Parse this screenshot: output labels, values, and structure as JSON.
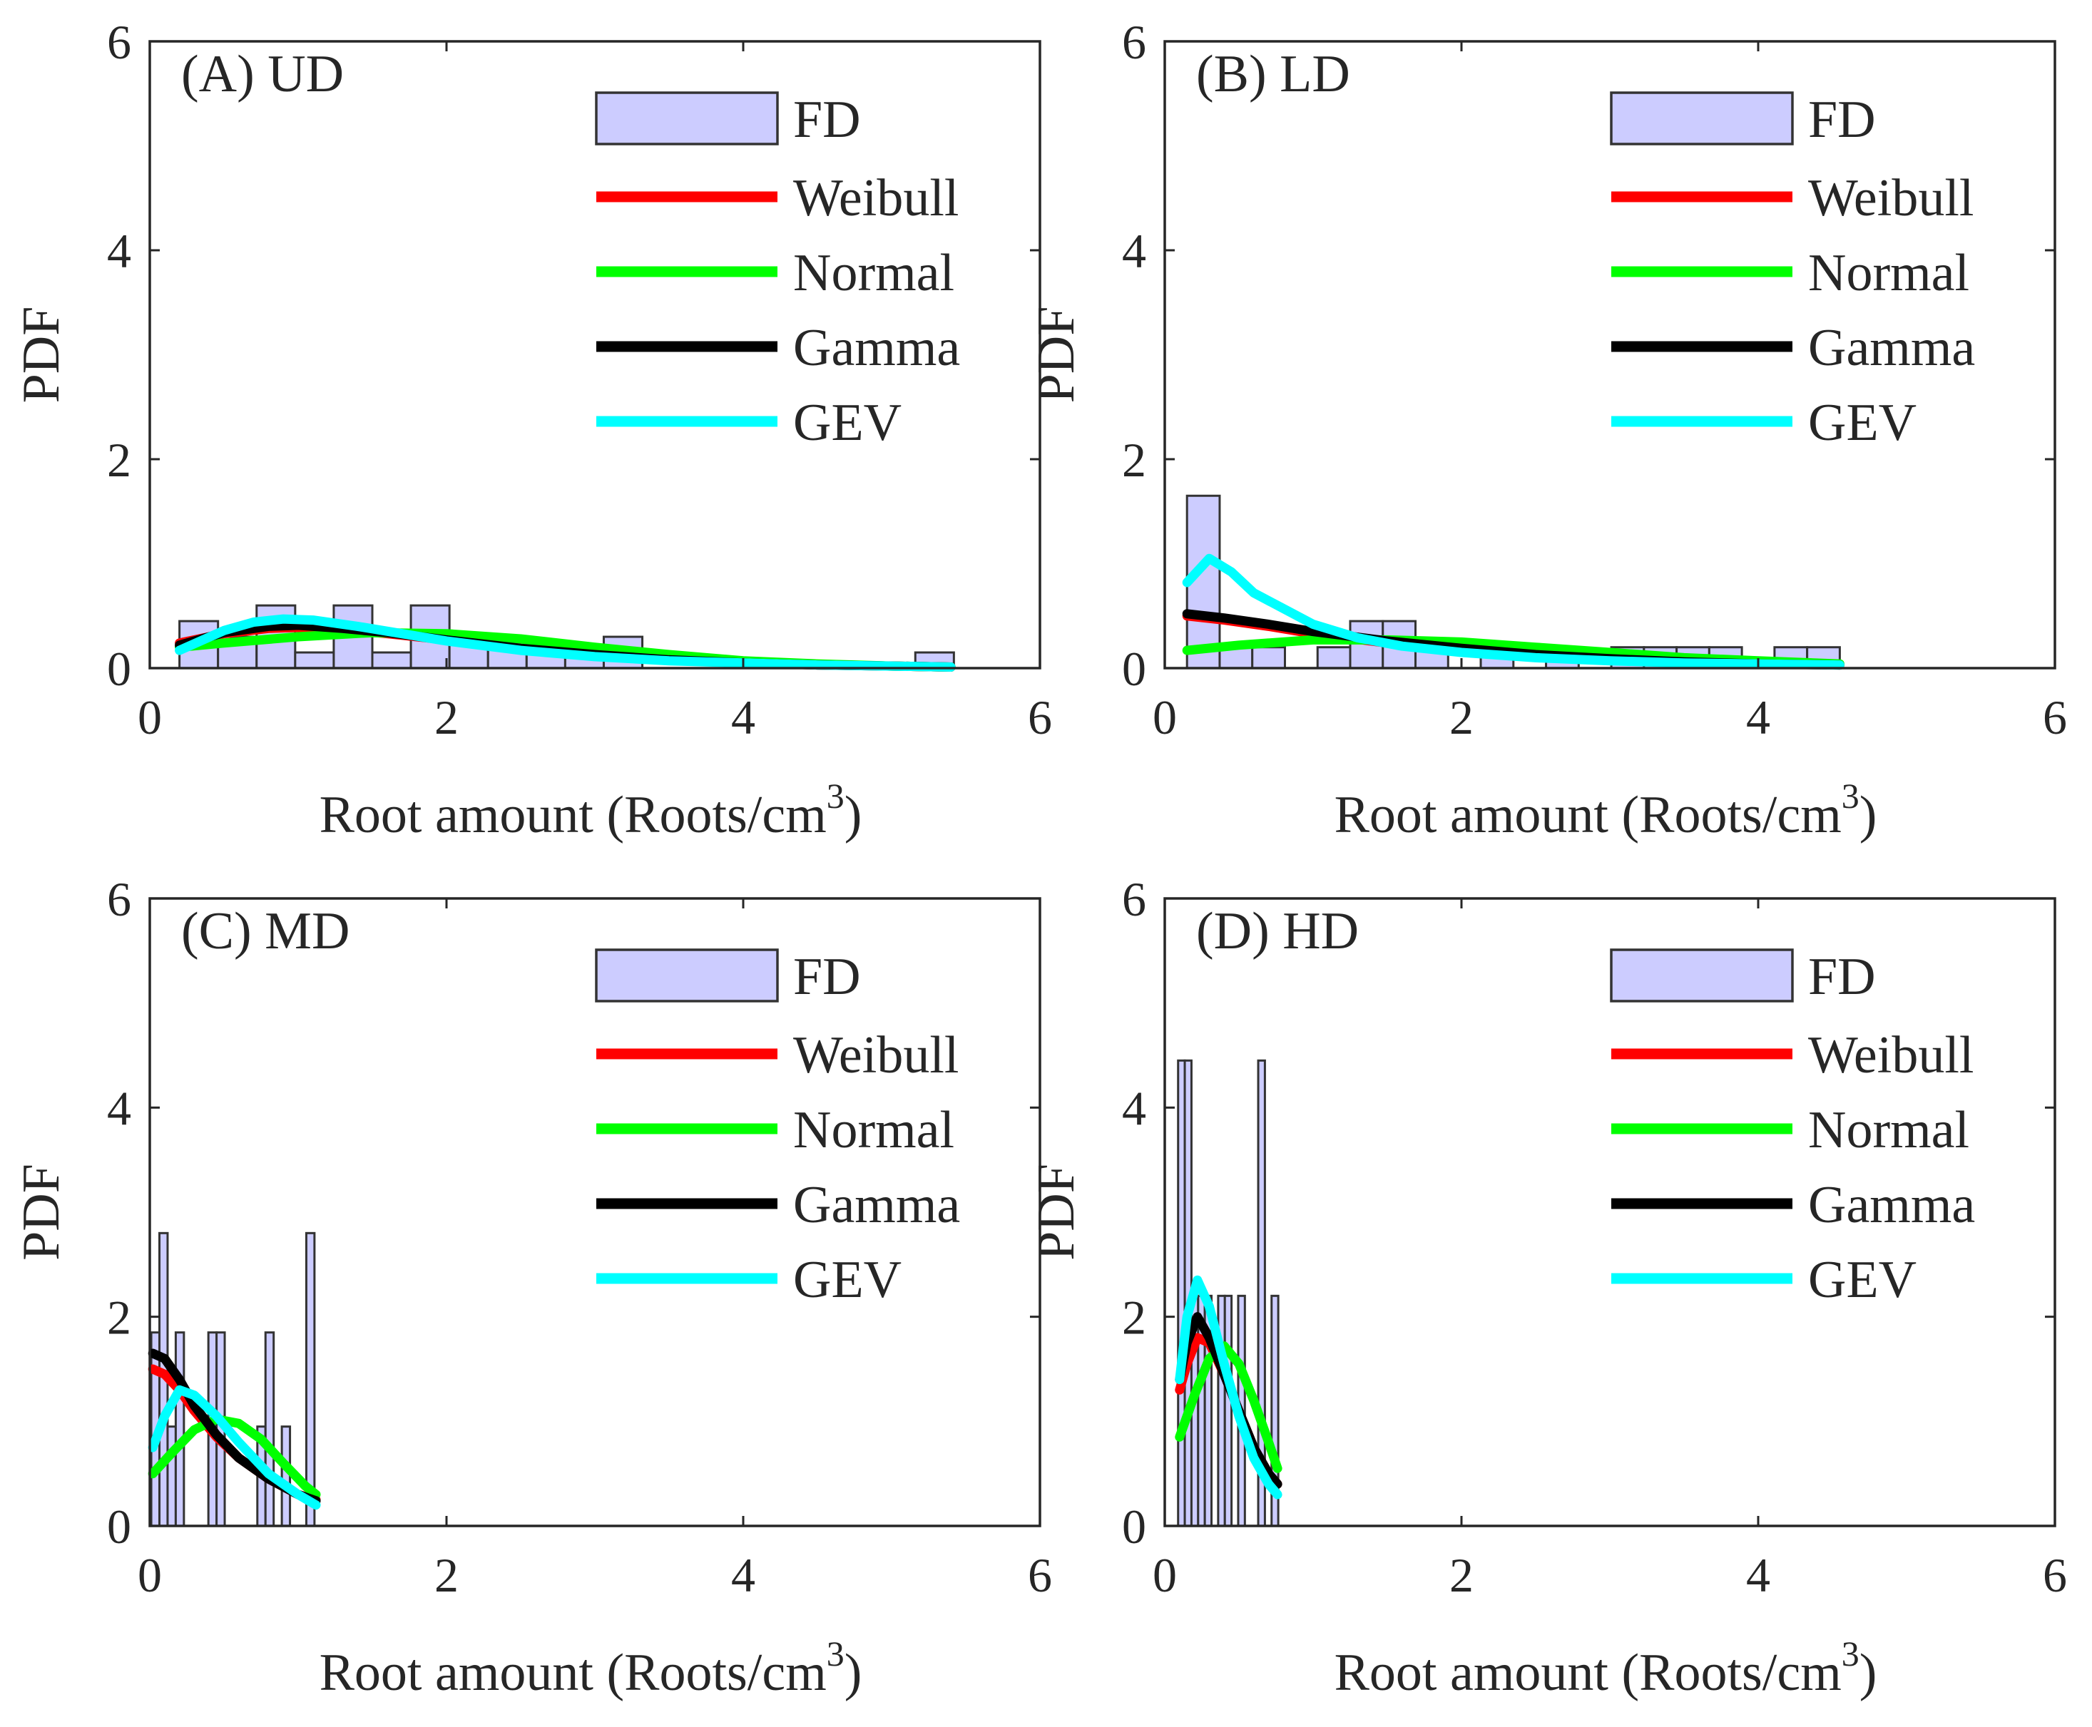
{
  "chart_data": [
    {
      "type": "bar",
      "title": "(A) UD",
      "xlabel": "Root amount (Roots/cm",
      "xlabel_sup": "3",
      "xlabel_close": ")",
      "ylabel": "PDF",
      "xlim": [
        0,
        6
      ],
      "ylim": [
        0,
        6
      ],
      "xticks": [
        "0",
        "2",
        "4",
        "6"
      ],
      "yticks": [
        "0",
        "2",
        "4",
        "6"
      ],
      "grid": false,
      "legend_position": "top-right",
      "histogram": {
        "name": "FD",
        "bin_width": 0.26,
        "bins": [
          [
            0.2,
            0.45
          ],
          [
            0.46,
            0.3
          ],
          [
            0.72,
            0.6
          ],
          [
            0.98,
            0.15
          ],
          [
            1.24,
            0.6
          ],
          [
            1.5,
            0.15
          ],
          [
            1.76,
            0.6
          ],
          [
            2.02,
            0.3
          ],
          [
            2.28,
            0.3
          ],
          [
            2.54,
            0.15
          ],
          [
            2.8,
            0.15
          ],
          [
            3.06,
            0.3
          ],
          [
            4.36,
            0.0
          ],
          [
            5.16,
            0.15
          ]
        ]
      },
      "series": [
        {
          "name": "Weibull",
          "color": "#ff0000",
          "x": [
            0.2,
            0.5,
            0.8,
            1.0,
            1.3,
            1.6,
            2.0,
            2.5,
            3.0,
            3.5,
            4.0,
            4.5,
            5.0,
            5.4
          ],
          "y": [
            0.24,
            0.33,
            0.38,
            0.39,
            0.37,
            0.33,
            0.27,
            0.19,
            0.13,
            0.08,
            0.05,
            0.03,
            0.02,
            0.01
          ]
        },
        {
          "name": "Normal",
          "color": "#00ff00",
          "x": [
            0.2,
            0.5,
            1.0,
            1.5,
            2.0,
            2.5,
            3.0,
            3.5,
            4.0,
            4.5,
            5.0,
            5.4
          ],
          "y": [
            0.2,
            0.24,
            0.3,
            0.34,
            0.33,
            0.28,
            0.2,
            0.13,
            0.07,
            0.04,
            0.02,
            0.01
          ]
        },
        {
          "name": "Gamma",
          "color": "#000000",
          "x": [
            0.2,
            0.5,
            0.8,
            1.0,
            1.3,
            1.6,
            2.0,
            2.5,
            3.0,
            3.5,
            4.0,
            4.5,
            5.0,
            5.4
          ],
          "y": [
            0.22,
            0.34,
            0.4,
            0.41,
            0.38,
            0.34,
            0.27,
            0.19,
            0.13,
            0.08,
            0.05,
            0.03,
            0.02,
            0.01
          ]
        },
        {
          "name": "GEV",
          "color": "#00ffff",
          "x": [
            0.2,
            0.5,
            0.7,
            0.9,
            1.1,
            1.4,
            1.7,
            2.0,
            2.5,
            3.0,
            3.5,
            4.0,
            4.5,
            5.0,
            5.4
          ],
          "y": [
            0.17,
            0.36,
            0.44,
            0.47,
            0.46,
            0.4,
            0.33,
            0.26,
            0.17,
            0.11,
            0.07,
            0.05,
            0.03,
            0.02,
            0.01
          ]
        }
      ]
    },
    {
      "type": "bar",
      "title": "(B) LD",
      "xlabel": "Root amount (Roots/cm",
      "xlabel_sup": "3",
      "xlabel_close": ")",
      "ylabel": "PDF",
      "xlim": [
        0,
        6
      ],
      "ylim": [
        0,
        6
      ],
      "xticks": [
        "0",
        "2",
        "4",
        "6"
      ],
      "yticks": [
        "0",
        "2",
        "4",
        "6"
      ],
      "grid": false,
      "legend_position": "top-right",
      "histogram": {
        "name": "FD",
        "bin_width": 0.22,
        "bins": [
          [
            0.15,
            1.65
          ],
          [
            0.37,
            0.2
          ],
          [
            0.59,
            0.2
          ],
          [
            1.03,
            0.2
          ],
          [
            1.25,
            0.45
          ],
          [
            1.47,
            0.45
          ],
          [
            1.69,
            0.2
          ],
          [
            2.13,
            0.2
          ],
          [
            2.57,
            0.2
          ],
          [
            3.01,
            0.2
          ],
          [
            3.23,
            0.2
          ],
          [
            3.45,
            0.2
          ],
          [
            3.67,
            0.2
          ],
          [
            4.11,
            0.2
          ],
          [
            4.33,
            0.2
          ]
        ]
      },
      "series": [
        {
          "name": "Weibull",
          "color": "#ff0000",
          "x": [
            0.15,
            0.4,
            0.7,
            1.0,
            1.5,
            2.0,
            2.5,
            3.0,
            3.5,
            4.0,
            4.55
          ],
          "y": [
            0.5,
            0.46,
            0.4,
            0.33,
            0.24,
            0.17,
            0.12,
            0.09,
            0.06,
            0.05,
            0.03
          ]
        },
        {
          "name": "Normal",
          "color": "#00ff00",
          "x": [
            0.15,
            0.5,
            1.0,
            1.5,
            2.0,
            2.5,
            3.0,
            3.5,
            4.0,
            4.55
          ],
          "y": [
            0.17,
            0.22,
            0.27,
            0.27,
            0.25,
            0.2,
            0.15,
            0.1,
            0.07,
            0.04
          ]
        },
        {
          "name": "Gamma",
          "color": "#000000",
          "x": [
            0.15,
            0.4,
            0.7,
            1.0,
            1.5,
            2.0,
            2.5,
            3.0,
            3.5,
            4.0,
            4.55
          ],
          "y": [
            0.52,
            0.48,
            0.42,
            0.35,
            0.26,
            0.19,
            0.13,
            0.09,
            0.06,
            0.04,
            0.03
          ]
        },
        {
          "name": "GEV",
          "color": "#00ffff",
          "x": [
            0.15,
            0.3,
            0.45,
            0.6,
            0.8,
            1.0,
            1.3,
            1.6,
            2.0,
            2.5,
            3.0,
            3.5,
            4.0,
            4.55
          ],
          "y": [
            0.82,
            1.05,
            0.92,
            0.72,
            0.57,
            0.42,
            0.29,
            0.21,
            0.15,
            0.1,
            0.07,
            0.05,
            0.04,
            0.03
          ]
        }
      ]
    },
    {
      "type": "bar",
      "title": "(C) MD",
      "xlabel": "Root amount (Roots/cm",
      "xlabel_sup": "3",
      "xlabel_close": ")",
      "ylabel": "PDF",
      "xlim": [
        0,
        6
      ],
      "ylim": [
        0,
        6
      ],
      "xticks": [
        "0",
        "2",
        "4",
        "6"
      ],
      "yticks": [
        "0",
        "2",
        "4",
        "6"
      ],
      "grid": false,
      "legend_position": "top-right",
      "histogram": {
        "name": "FD",
        "bin_width": 0.055,
        "bins": [
          [
            0.01,
            1.85
          ],
          [
            0.065,
            2.8
          ],
          [
            0.12,
            0.95
          ],
          [
            0.175,
            1.85
          ],
          [
            0.23,
            0.0
          ],
          [
            0.395,
            1.85
          ],
          [
            0.45,
            1.85
          ],
          [
            0.725,
            0.95
          ],
          [
            0.78,
            1.85
          ],
          [
            0.89,
            0.95
          ],
          [
            1.055,
            2.8
          ]
        ]
      },
      "series": [
        {
          "name": "Weibull",
          "color": "#ff0000",
          "x": [
            0.02,
            0.1,
            0.2,
            0.3,
            0.45,
            0.6,
            0.8,
            1.0,
            1.12
          ],
          "y": [
            1.5,
            1.45,
            1.3,
            1.1,
            0.85,
            0.65,
            0.45,
            0.3,
            0.25
          ]
        },
        {
          "name": "Normal",
          "color": "#00ff00",
          "x": [
            0.02,
            0.15,
            0.3,
            0.45,
            0.6,
            0.75,
            0.9,
            1.05,
            1.12
          ],
          "y": [
            0.5,
            0.7,
            0.92,
            1.02,
            0.98,
            0.83,
            0.6,
            0.38,
            0.3
          ]
        },
        {
          "name": "Gamma",
          "color": "#000000",
          "x": [
            0.02,
            0.1,
            0.2,
            0.3,
            0.45,
            0.6,
            0.8,
            1.0,
            1.12
          ],
          "y": [
            1.65,
            1.6,
            1.4,
            1.15,
            0.87,
            0.65,
            0.45,
            0.3,
            0.24
          ]
        },
        {
          "name": "GEV",
          "color": "#00ffff",
          "x": [
            0.02,
            0.1,
            0.2,
            0.3,
            0.45,
            0.6,
            0.8,
            1.0,
            1.12
          ],
          "y": [
            0.75,
            1.05,
            1.3,
            1.25,
            1.05,
            0.8,
            0.5,
            0.3,
            0.2
          ]
        }
      ]
    },
    {
      "type": "bar",
      "title": "(D) HD",
      "xlabel": "Root amount (Roots/cm",
      "xlabel_sup": "3",
      "xlabel_close": ")",
      "ylabel": "PDF",
      "xlim": [
        0,
        6
      ],
      "ylim": [
        0,
        6
      ],
      "xticks": [
        "0",
        "2",
        "4",
        "6"
      ],
      "yticks": [
        "0",
        "2",
        "4",
        "6"
      ],
      "grid": false,
      "legend_position": "top-right",
      "histogram": {
        "name": "FD",
        "bin_width": 0.045,
        "bins": [
          [
            0.09,
            4.45
          ],
          [
            0.135,
            4.45
          ],
          [
            0.18,
            2.2
          ],
          [
            0.225,
            2.2
          ],
          [
            0.27,
            2.2
          ],
          [
            0.36,
            2.2
          ],
          [
            0.405,
            2.2
          ],
          [
            0.495,
            2.2
          ],
          [
            0.63,
            4.45
          ],
          [
            0.72,
            2.2
          ]
        ]
      },
      "series": [
        {
          "name": "Weibull",
          "color": "#ff0000",
          "x": [
            0.1,
            0.15,
            0.22,
            0.3,
            0.4,
            0.5,
            0.6,
            0.7,
            0.76
          ],
          "y": [
            1.3,
            1.55,
            1.8,
            1.75,
            1.45,
            1.1,
            0.75,
            0.5,
            0.4
          ]
        },
        {
          "name": "Normal",
          "color": "#00ff00",
          "x": [
            0.1,
            0.2,
            0.3,
            0.4,
            0.5,
            0.6,
            0.7,
            0.76
          ],
          "y": [
            0.85,
            1.25,
            1.6,
            1.72,
            1.55,
            1.2,
            0.8,
            0.55
          ]
        },
        {
          "name": "Gamma",
          "color": "#000000",
          "x": [
            0.1,
            0.15,
            0.22,
            0.3,
            0.4,
            0.5,
            0.6,
            0.7,
            0.76
          ],
          "y": [
            1.4,
            1.75,
            2.0,
            1.8,
            1.45,
            1.1,
            0.75,
            0.5,
            0.4
          ]
        },
        {
          "name": "GEV",
          "color": "#00ffff",
          "x": [
            0.1,
            0.15,
            0.22,
            0.3,
            0.4,
            0.5,
            0.6,
            0.7,
            0.76
          ],
          "y": [
            1.4,
            2.0,
            2.35,
            2.1,
            1.55,
            1.05,
            0.65,
            0.4,
            0.3
          ]
        }
      ]
    }
  ],
  "colors": {
    "bar_fill": "#ccccff",
    "bar_stroke": "#333333",
    "axis": "#262626"
  }
}
